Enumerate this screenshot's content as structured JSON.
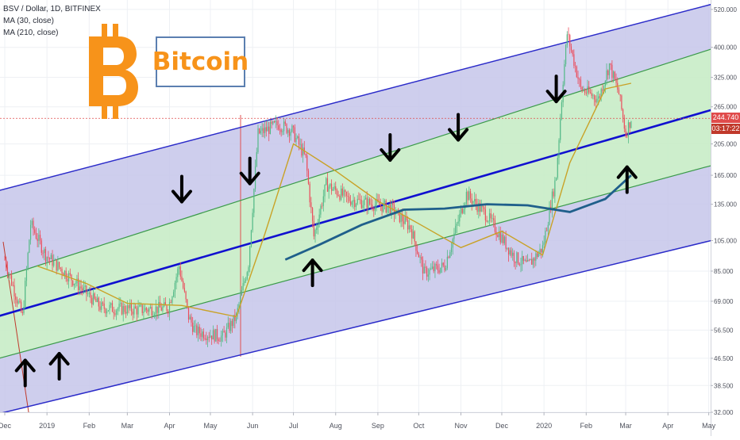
{
  "legend": {
    "symbol": "BSV / Dollar, 1D, BITFINEX",
    "ma_fast": "MA (30, close)",
    "ma_slow": "MA (210, close)"
  },
  "brand": {
    "text": "Bitcoin",
    "logo_icon": "bitcoin-b-icon"
  },
  "colors": {
    "up_candle": "#53b987",
    "down_candle": "#eb4d5c",
    "ma_fast": "#c9a227",
    "ma_slow": "#1f5f8b",
    "channel_outer_fill": "#c5c6ea",
    "channel_inner_fill": "#c8ecc6",
    "channel_outer_line": "#2b2bc9",
    "channel_inner_line": "#3a9a4a",
    "midline": "#1010d0",
    "bitcoin_orange": "#f7931a",
    "price_line": "#e04b4b",
    "time_tag": "#c0392b"
  },
  "chart_data": {
    "type": "candlestick",
    "title": "BSV / Dollar, 1D, BITFINEX",
    "scale": "log",
    "ylim": [
      32,
      540
    ],
    "y_ticks": [
      "520.000",
      "400.000",
      "325.000",
      "265.000",
      "205.000",
      "165.000",
      "135.000",
      "105.000",
      "85.000",
      "69.000",
      "56.500",
      "46.500",
      "38.500",
      "32.000"
    ],
    "x_ticks": [
      "Dec",
      "2019",
      "Feb",
      "Mar",
      "Apr",
      "May",
      "Jun",
      "Jul",
      "Aug",
      "Sep",
      "Oct",
      "Nov",
      "Dec",
      "2020",
      "Feb",
      "Mar",
      "Apr",
      "May"
    ],
    "last_price": "244.740",
    "countdown": "03:17:22",
    "price_path": [
      {
        "date": "2018-12-01",
        "close": 92
      },
      {
        "date": "2018-12-14",
        "close": 62
      },
      {
        "date": "2018-12-20",
        "close": 118
      },
      {
        "date": "2018-12-31",
        "close": 95
      },
      {
        "date": "2019-01-20",
        "close": 80
      },
      {
        "date": "2019-02-10",
        "close": 66
      },
      {
        "date": "2019-03-10",
        "close": 65
      },
      {
        "date": "2019-03-31",
        "close": 66
      },
      {
        "date": "2019-04-08",
        "close": 88
      },
      {
        "date": "2019-04-15",
        "close": 62
      },
      {
        "date": "2019-04-20",
        "close": 56
      },
      {
        "date": "2019-05-10",
        "close": 54
      },
      {
        "date": "2019-05-20",
        "close": 62
      },
      {
        "date": "2019-05-29",
        "close": 90
      },
      {
        "date": "2019-06-05",
        "close": 220
      },
      {
        "date": "2019-06-20",
        "close": 235
      },
      {
        "date": "2019-06-30",
        "close": 225
      },
      {
        "date": "2019-07-10",
        "close": 185
      },
      {
        "date": "2019-07-16",
        "close": 108
      },
      {
        "date": "2019-07-25",
        "close": 155
      },
      {
        "date": "2019-08-10",
        "close": 140
      },
      {
        "date": "2019-09-10",
        "close": 132
      },
      {
        "date": "2019-09-25",
        "close": 115
      },
      {
        "date": "2019-10-05",
        "close": 84
      },
      {
        "date": "2019-10-20",
        "close": 88
      },
      {
        "date": "2019-11-05",
        "close": 145
      },
      {
        "date": "2019-11-20",
        "close": 125
      },
      {
        "date": "2019-12-10",
        "close": 94
      },
      {
        "date": "2019-12-20",
        "close": 88
      },
      {
        "date": "2019-12-31",
        "close": 100
      },
      {
        "date": "2020-01-10",
        "close": 165
      },
      {
        "date": "2020-01-15",
        "close": 320
      },
      {
        "date": "2020-01-18",
        "close": 440
      },
      {
        "date": "2020-01-28",
        "close": 300
      },
      {
        "date": "2020-02-10",
        "close": 280
      },
      {
        "date": "2020-02-18",
        "close": 355
      },
      {
        "date": "2020-02-25",
        "close": 290
      },
      {
        "date": "2020-03-01",
        "close": 220
      },
      {
        "date": "2020-03-05",
        "close": 244.74
      }
    ],
    "series": [
      {
        "name": "MA (30, close)",
        "points": [
          {
            "date": "2018-12-25",
            "value": 88
          },
          {
            "date": "2019-01-30",
            "value": 78
          },
          {
            "date": "2019-03-01",
            "value": 68
          },
          {
            "date": "2019-04-10",
            "value": 67
          },
          {
            "date": "2019-05-20",
            "value": 62
          },
          {
            "date": "2019-06-10",
            "value": 110
          },
          {
            "date": "2019-07-01",
            "value": 205
          },
          {
            "date": "2019-08-01",
            "value": 170
          },
          {
            "date": "2019-09-01",
            "value": 138
          },
          {
            "date": "2019-10-01",
            "value": 118
          },
          {
            "date": "2019-11-01",
            "value": 100
          },
          {
            "date": "2019-12-01",
            "value": 112
          },
          {
            "date": "2019-12-31",
            "value": 95
          },
          {
            "date": "2020-01-20",
            "value": 180
          },
          {
            "date": "2020-02-15",
            "value": 300
          },
          {
            "date": "2020-03-05",
            "value": 312
          }
        ]
      },
      {
        "name": "MA (210, close)",
        "points": [
          {
            "date": "2019-06-25",
            "value": 92
          },
          {
            "date": "2019-07-20",
            "value": 102
          },
          {
            "date": "2019-08-20",
            "value": 117
          },
          {
            "date": "2019-09-20",
            "value": 130
          },
          {
            "date": "2019-10-20",
            "value": 131
          },
          {
            "date": "2019-11-20",
            "value": 135
          },
          {
            "date": "2019-12-20",
            "value": 134
          },
          {
            "date": "2020-01-20",
            "value": 128
          },
          {
            "date": "2020-02-15",
            "value": 140
          },
          {
            "date": "2020-03-05",
            "value": 165
          }
        ]
      }
    ],
    "channel": {
      "midline": [
        {
          "date": "2018-12-01",
          "value": 63
        },
        {
          "date": "2020-05-15",
          "value": 268
        }
      ],
      "inner_upper": [
        {
          "date": "2018-12-01",
          "value": 82
        },
        {
          "date": "2020-05-15",
          "value": 410
        }
      ],
      "inner_lower": [
        {
          "date": "2018-12-01",
          "value": 47
        },
        {
          "date": "2020-05-15",
          "value": 182
        }
      ],
      "outer_upper": [
        {
          "date": "2018-12-01",
          "value": 150
        },
        {
          "date": "2020-05-15",
          "value": 555
        }
      ],
      "outer_lower": [
        {
          "date": "2018-12-01",
          "value": 32
        },
        {
          "date": "2020-05-15",
          "value": 108
        }
      ]
    },
    "annotations": {
      "down_arrows": [
        {
          "date": "2019-04-10",
          "value": 150
        },
        {
          "date": "2019-05-30",
          "value": 170
        },
        {
          "date": "2019-09-10",
          "value": 200
        },
        {
          "date": "2019-10-30",
          "value": 230
        },
        {
          "date": "2020-01-10",
          "value": 300
        }
      ],
      "up_arrows": [
        {
          "date": "2018-12-16",
          "value": 42
        },
        {
          "date": "2019-01-10",
          "value": 44
        },
        {
          "date": "2019-07-15",
          "value": 84
        },
        {
          "date": "2020-03-02",
          "value": 160
        }
      ]
    }
  }
}
